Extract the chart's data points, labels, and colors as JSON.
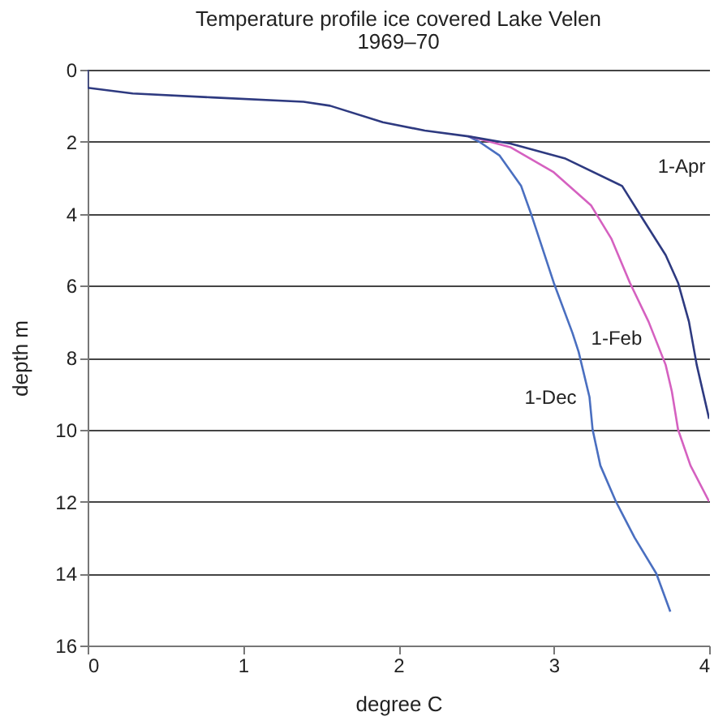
{
  "chart_data": {
    "type": "line",
    "title": "Temperature profile ice covered Lake Velen",
    "subtitle": "1969–70",
    "xlabel": "degree C",
    "ylabel": "depth m",
    "xlim": [
      0,
      4
    ],
    "xticks": [
      0,
      1,
      2,
      3,
      4
    ],
    "ylim": [
      16,
      0
    ],
    "yticks": [
      0,
      2,
      4,
      6,
      8,
      10,
      12,
      14,
      16
    ],
    "grid": "y",
    "legend": false,
    "marker": "none",
    "line_style": "solid",
    "series": [
      {
        "name": "1-Dec",
        "color": "#4a6fc0",
        "x": [
          2.45,
          2.52,
          2.65,
          2.79,
          2.86,
          3.0,
          3.12,
          3.16,
          3.23,
          3.25,
          3.3,
          3.4,
          3.52,
          3.66,
          3.75
        ],
        "values": [
          1.85,
          2.0,
          2.38,
          3.23,
          4.08,
          5.92,
          7.31,
          7.84,
          9.1,
          10.0,
          11.0,
          12.0,
          13.0,
          14.0,
          15.06
        ]
      },
      {
        "name": "1-Feb",
        "color": "#d561c0",
        "x": [
          2.45,
          2.52,
          2.72,
          3.0,
          3.24,
          3.37,
          3.49,
          3.61,
          3.72,
          3.76,
          3.8,
          3.88,
          4.0
        ],
        "values": [
          1.85,
          1.92,
          2.15,
          2.85,
          3.77,
          4.69,
          5.92,
          7.0,
          8.2,
          8.94,
          10.0,
          11.0,
          12.0
        ]
      },
      {
        "name": "1-Apr",
        "color": "#2e3a80",
        "x": [
          0,
          0,
          0.29,
          0.8,
          1.39,
          1.56,
          1.9,
          2.17,
          2.45,
          2.72,
          3.07,
          3.44,
          3.54,
          3.72,
          3.8,
          3.87,
          3.92,
          4.0
        ],
        "values": [
          0,
          0.5,
          0.66,
          0.77,
          0.89,
          1.0,
          1.46,
          1.69,
          1.85,
          2.05,
          2.46,
          3.23,
          3.92,
          5.15,
          5.92,
          7.0,
          8.2,
          9.7
        ]
      }
    ]
  }
}
